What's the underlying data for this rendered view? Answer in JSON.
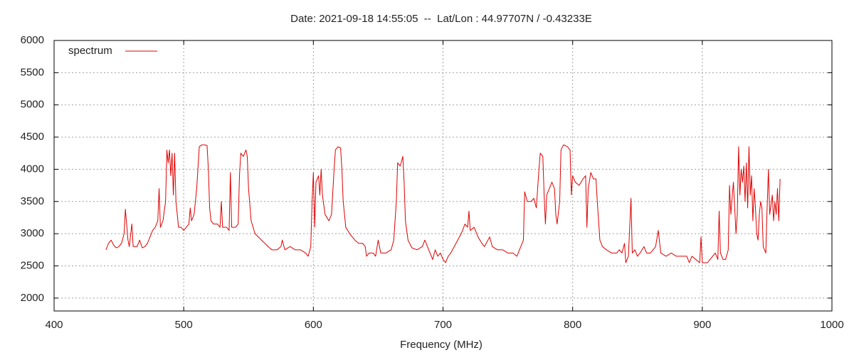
{
  "chart_data": {
    "type": "line",
    "title": "Date: 2021-09-18 14:55:05  --  Lat/Lon : 44.97707N / -0.43233E",
    "xlabel": "Frequency (MHz)",
    "xlim": [
      400,
      1000
    ],
    "xticks": [
      400,
      500,
      600,
      700,
      800,
      900,
      1000
    ],
    "ylim": [
      1800,
      6000
    ],
    "yticks": [
      2000,
      2500,
      3000,
      3500,
      4000,
      4500,
      5000,
      5500,
      6000
    ],
    "grid": true,
    "legend": "top-left",
    "x": [
      440,
      442,
      444,
      446,
      448,
      450,
      452,
      454,
      455,
      457,
      458,
      460,
      461,
      464,
      466,
      468,
      470,
      472,
      474,
      476,
      478,
      480,
      481,
      482,
      484,
      486,
      487,
      488,
      489,
      490,
      491,
      492,
      493,
      494,
      496,
      498,
      500,
      502,
      504,
      505,
      506,
      508,
      510,
      512,
      514,
      516,
      518,
      519,
      520,
      521,
      523,
      526,
      528,
      529,
      530,
      533,
      535,
      536,
      537,
      540,
      542,
      543,
      544,
      546,
      548,
      549,
      550,
      552,
      555,
      560,
      565,
      568,
      572,
      575,
      576,
      578,
      582,
      586,
      590,
      594,
      596,
      598,
      599,
      600,
      601,
      602,
      604,
      605,
      606,
      607,
      609,
      612,
      614,
      616,
      617,
      619,
      621,
      622,
      623,
      625,
      628,
      632,
      635,
      638,
      640,
      641,
      643,
      646,
      648,
      650,
      652,
      656,
      660,
      662,
      664,
      665,
      667,
      669,
      670,
      671,
      673,
      676,
      680,
      684,
      686,
      688,
      690,
      692,
      694,
      696,
      698,
      700,
      702,
      704,
      706,
      710,
      714,
      717,
      719,
      720,
      721,
      724,
      727,
      730,
      732,
      736,
      738,
      742,
      746,
      750,
      754,
      757,
      760,
      762,
      763,
      765,
      768,
      770,
      772,
      774,
      775,
      777,
      778,
      779,
      780,
      782,
      784,
      786,
      787,
      788,
      790,
      791,
      793,
      796,
      798,
      799,
      800,
      802,
      805,
      808,
      810,
      811,
      812,
      814,
      816,
      818,
      819,
      821,
      823,
      826,
      830,
      834,
      836,
      838,
      840,
      841,
      843,
      845,
      846,
      848,
      850,
      852,
      855,
      857,
      860,
      864,
      866,
      868,
      872,
      876,
      880,
      884,
      888,
      890,
      892,
      895,
      898,
      899,
      900,
      904,
      906,
      910,
      912,
      913,
      914,
      916,
      918,
      920,
      921,
      922,
      924,
      925,
      926,
      927,
      928,
      929,
      930,
      931,
      932,
      933,
      934,
      935,
      936,
      937,
      938,
      939,
      940,
      941,
      942,
      943,
      944,
      945,
      946,
      947,
      949,
      950,
      951,
      952,
      954,
      955,
      956,
      957,
      958,
      959,
      960
    ],
    "series": [
      {
        "name": "spectrum",
        "color": "#e00000",
        "values": [
          2750,
          2850,
          2900,
          2820,
          2780,
          2800,
          2850,
          3000,
          3380,
          2900,
          2800,
          3150,
          2800,
          2800,
          2900,
          2780,
          2800,
          2850,
          2950,
          3050,
          3100,
          3200,
          3700,
          3100,
          3200,
          3500,
          4300,
          4100,
          4300,
          3900,
          4250,
          3600,
          4250,
          3500,
          3100,
          3100,
          3050,
          3100,
          3150,
          3400,
          3200,
          3300,
          3700,
          4350,
          4380,
          4380,
          4370,
          4000,
          3400,
          3200,
          3150,
          3150,
          3100,
          3500,
          3100,
          3100,
          3050,
          3950,
          3100,
          3100,
          3150,
          3900,
          4250,
          4200,
          4300,
          4200,
          3700,
          3200,
          3000,
          2900,
          2800,
          2750,
          2750,
          2800,
          2900,
          2750,
          2800,
          2750,
          2750,
          2700,
          2650,
          2800,
          3500,
          3950,
          3100,
          3800,
          3900,
          3600,
          4000,
          3600,
          3300,
          3200,
          3300,
          4000,
          4300,
          4350,
          4330,
          4000,
          3500,
          3100,
          3000,
          2900,
          2850,
          2850,
          2800,
          2650,
          2700,
          2700,
          2650,
          2900,
          2700,
          2700,
          2750,
          2900,
          3500,
          4100,
          4050,
          4200,
          3800,
          3200,
          2900,
          2780,
          2750,
          2800,
          2900,
          2800,
          2700,
          2600,
          2750,
          2650,
          2700,
          2600,
          2550,
          2650,
          2700,
          2850,
          3000,
          3150,
          3100,
          3350,
          3050,
          3100,
          2950,
          2850,
          2800,
          2950,
          2800,
          2750,
          2750,
          2700,
          2700,
          2650,
          2800,
          2900,
          3650,
          3500,
          3500,
          3550,
          3400,
          4000,
          4250,
          4200,
          3600,
          3150,
          3600,
          3700,
          3800,
          3700,
          3300,
          3150,
          3500,
          4300,
          4380,
          4350,
          4300,
          3600,
          3900,
          3800,
          3750,
          3850,
          3900,
          3100,
          3700,
          3950,
          3850,
          3850,
          3500,
          2900,
          2800,
          2750,
          2700,
          2700,
          2750,
          2700,
          2850,
          2550,
          2650,
          3550,
          2700,
          2750,
          2650,
          2700,
          2800,
          2700,
          2700,
          2800,
          3050,
          2700,
          2650,
          2700,
          2650,
          2650,
          2650,
          2550,
          2650,
          2600,
          2550,
          2950,
          2550,
          2550,
          2600,
          2700,
          2600,
          3350,
          2700,
          2600,
          2600,
          2750,
          3750,
          3300,
          3800,
          3400,
          3000,
          3300,
          4350,
          3600,
          4000,
          3800,
          4050,
          3500,
          4100,
          3400,
          4350,
          3600,
          3900,
          3200,
          3700,
          3400,
          3000,
          2900,
          3300,
          3500,
          3400,
          2800,
          2700,
          3400,
          4000,
          3300,
          3600,
          3200,
          3500,
          3300,
          3700,
          3200,
          3850
        ]
      }
    ]
  }
}
